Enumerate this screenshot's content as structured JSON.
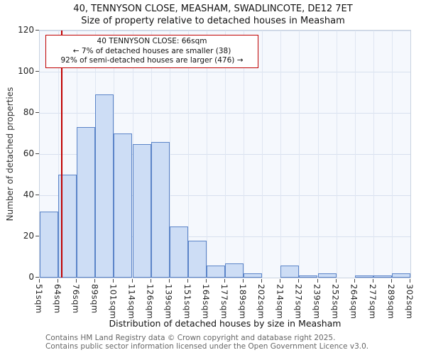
{
  "chart_data": {
    "type": "bar",
    "title": "40, TENNYSON CLOSE, MEASHAM, SWADLINCOTE, DE12 7ET",
    "subtitle": "Size of property relative to detached houses in Measham",
    "xlabel": "Distribution of detached houses by size in Measham",
    "ylabel": "Number of detached properties",
    "xtick_labels": [
      "51sqm",
      "64sqm",
      "76sqm",
      "89sqm",
      "101sqm",
      "114sqm",
      "126sqm",
      "139sqm",
      "151sqm",
      "164sqm",
      "177sqm",
      "189sqm",
      "202sqm",
      "214sqm",
      "227sqm",
      "239sqm",
      "252sqm",
      "264sqm",
      "277sqm",
      "289sqm",
      "302sqm"
    ],
    "values": [
      32,
      50,
      73,
      89,
      70,
      65,
      66,
      25,
      18,
      6,
      7,
      2,
      0,
      6,
      1,
      2,
      0,
      1,
      1,
      2
    ],
    "xlim": [
      51,
      302
    ],
    "ylim": [
      0,
      120
    ],
    "yticks": [
      0,
      20,
      40,
      60,
      80,
      100,
      120
    ],
    "grid": true,
    "marker": {
      "value": 66,
      "label": "66sqm"
    },
    "annotation": {
      "line1": "40 TENNYSON CLOSE: 66sqm",
      "line2": "← 7% of detached houses are smaller (38)",
      "line3": "92% of semi-detached houses are larger (476) →"
    },
    "colors": {
      "bar_fill": "#cdddf5",
      "bar_stroke": "#5b84c8",
      "marker": "#c00000",
      "grid": "#d8e0ee",
      "plot_bg": "#f5f8fd"
    },
    "footer": [
      "Contains HM Land Registry data © Crown copyright and database right 2025.",
      "Contains public sector information licensed under the Open Government Licence v3.0."
    ]
  }
}
